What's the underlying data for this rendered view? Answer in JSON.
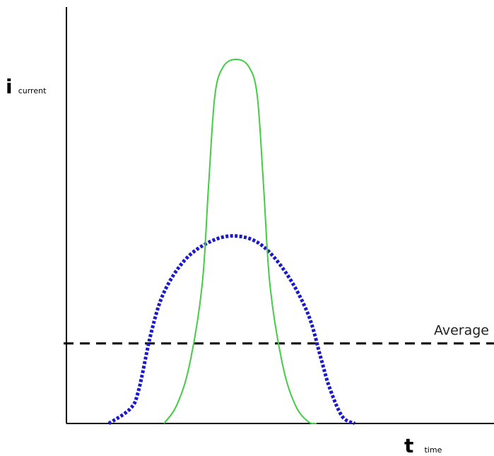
{
  "chart_data": {
    "type": "line",
    "title": "",
    "x_range": [
      0,
      10
    ],
    "y_range": [
      0,
      10
    ],
    "grid": false,
    "ylabel": {
      "symbol": "i",
      "subscript": "current"
    },
    "xlabel": {
      "symbol": "t",
      "subscript": "time"
    },
    "series": [
      {
        "style": "dotted",
        "color": "#1a1acc",
        "x": [
          1.0,
          1.5,
          1.7,
          2.0,
          2.3,
          2.8,
          3.4,
          4.0,
          4.6,
          5.2,
          5.7,
          6.0,
          6.2,
          6.5,
          6.8
        ],
        "y": [
          0.0,
          0.4,
          0.9,
          2.5,
          3.6,
          4.5,
          5.0,
          5.15,
          4.9,
          4.1,
          3.0,
          1.8,
          1.0,
          0.2,
          0.0
        ]
      },
      {
        "style": "solid",
        "color": "#44cc44",
        "x": [
          2.3,
          2.6,
          2.9,
          3.2,
          3.35,
          3.5,
          3.7,
          4.0,
          4.3,
          4.5,
          4.65,
          4.8,
          5.1,
          5.4,
          5.7,
          5.9
        ],
        "y": [
          0.0,
          0.5,
          1.6,
          3.8,
          6.5,
          9.0,
          9.8,
          10.0,
          9.8,
          9.0,
          6.5,
          3.8,
          1.6,
          0.5,
          0.05,
          0.0
        ]
      }
    ],
    "reference_lines": [
      {
        "label": "Average",
        "y": 2.2,
        "style": "dashed",
        "color": "#000000"
      }
    ]
  }
}
